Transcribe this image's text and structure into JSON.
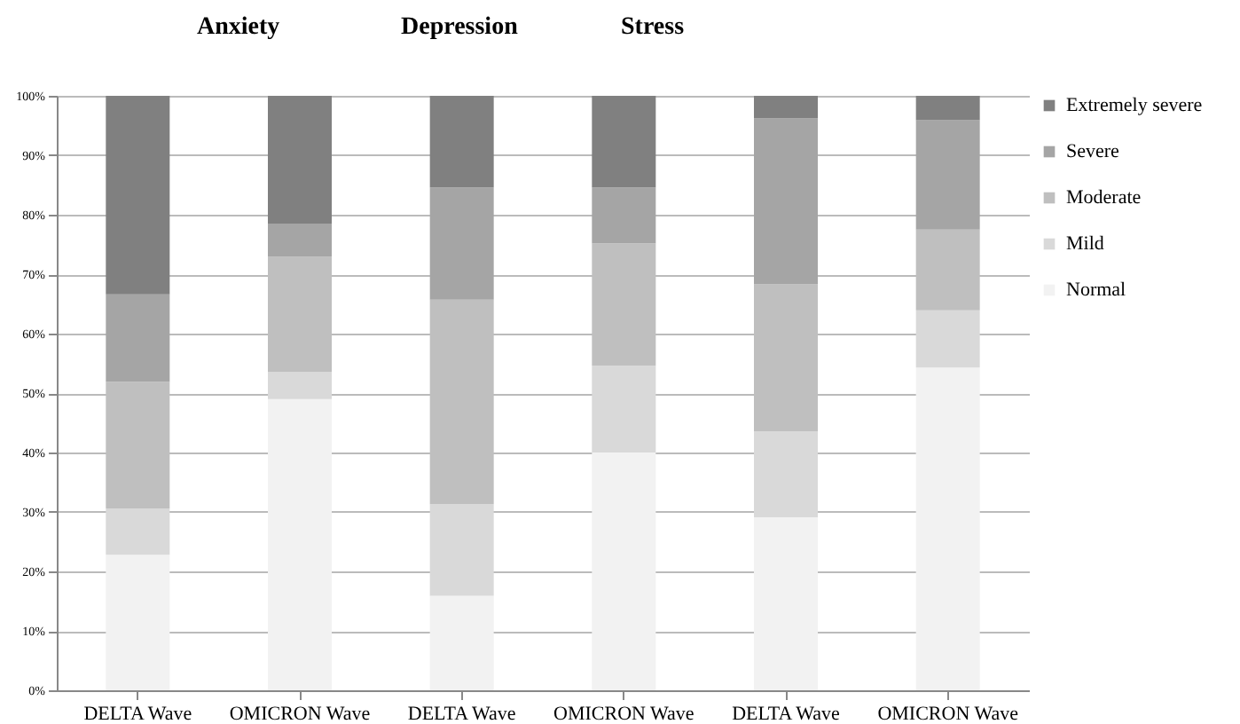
{
  "chart_data": {
    "type": "bar",
    "stacked": true,
    "annotations": [
      "Anxiety",
      "Depression",
      "Stress"
    ],
    "categories": [
      "DELTA Wave",
      "OMICRON Wave",
      "DELTA Wave",
      "OMICRON Wave",
      "DELTA Wave",
      "OMICRON Wave"
    ],
    "series": [
      {
        "name": "Normal",
        "color": "#f2f2f2",
        "values": [
          22.8,
          49.0,
          15.9,
          40.0,
          29.1,
          54.3
        ]
      },
      {
        "name": "Mild",
        "color": "#d9d9d9",
        "values": [
          7.8,
          4.6,
          15.4,
          14.6,
          14.5,
          9.6
        ]
      },
      {
        "name": "Moderate",
        "color": "#bfbfbf",
        "values": [
          21.3,
          19.3,
          34.4,
          20.6,
          24.7,
          13.6
        ]
      },
      {
        "name": "Severe",
        "color": "#a5a5a5",
        "values": [
          14.7,
          5.6,
          18.9,
          9.4,
          27.9,
          18.4
        ]
      },
      {
        "name": "Extremely severe",
        "color": "#808080",
        "values": [
          33.4,
          21.5,
          15.4,
          15.4,
          3.8,
          4.1
        ]
      }
    ],
    "ylim": [
      0,
      100
    ],
    "yticks": [
      {
        "value": 0,
        "label": "0%"
      },
      {
        "value": 10,
        "label": "10%"
      },
      {
        "value": 20,
        "label": "20%"
      },
      {
        "value": 30,
        "label": "30%"
      },
      {
        "value": 40,
        "label": "40%"
      },
      {
        "value": 50,
        "label": "50%"
      },
      {
        "value": 60,
        "label": "60%"
      },
      {
        "value": 70,
        "label": "70%"
      },
      {
        "value": 80,
        "label": "80%"
      },
      {
        "value": 90,
        "label": "90%"
      },
      {
        "value": 100,
        "label": "100%"
      }
    ],
    "grid": "y",
    "legend": "right"
  }
}
